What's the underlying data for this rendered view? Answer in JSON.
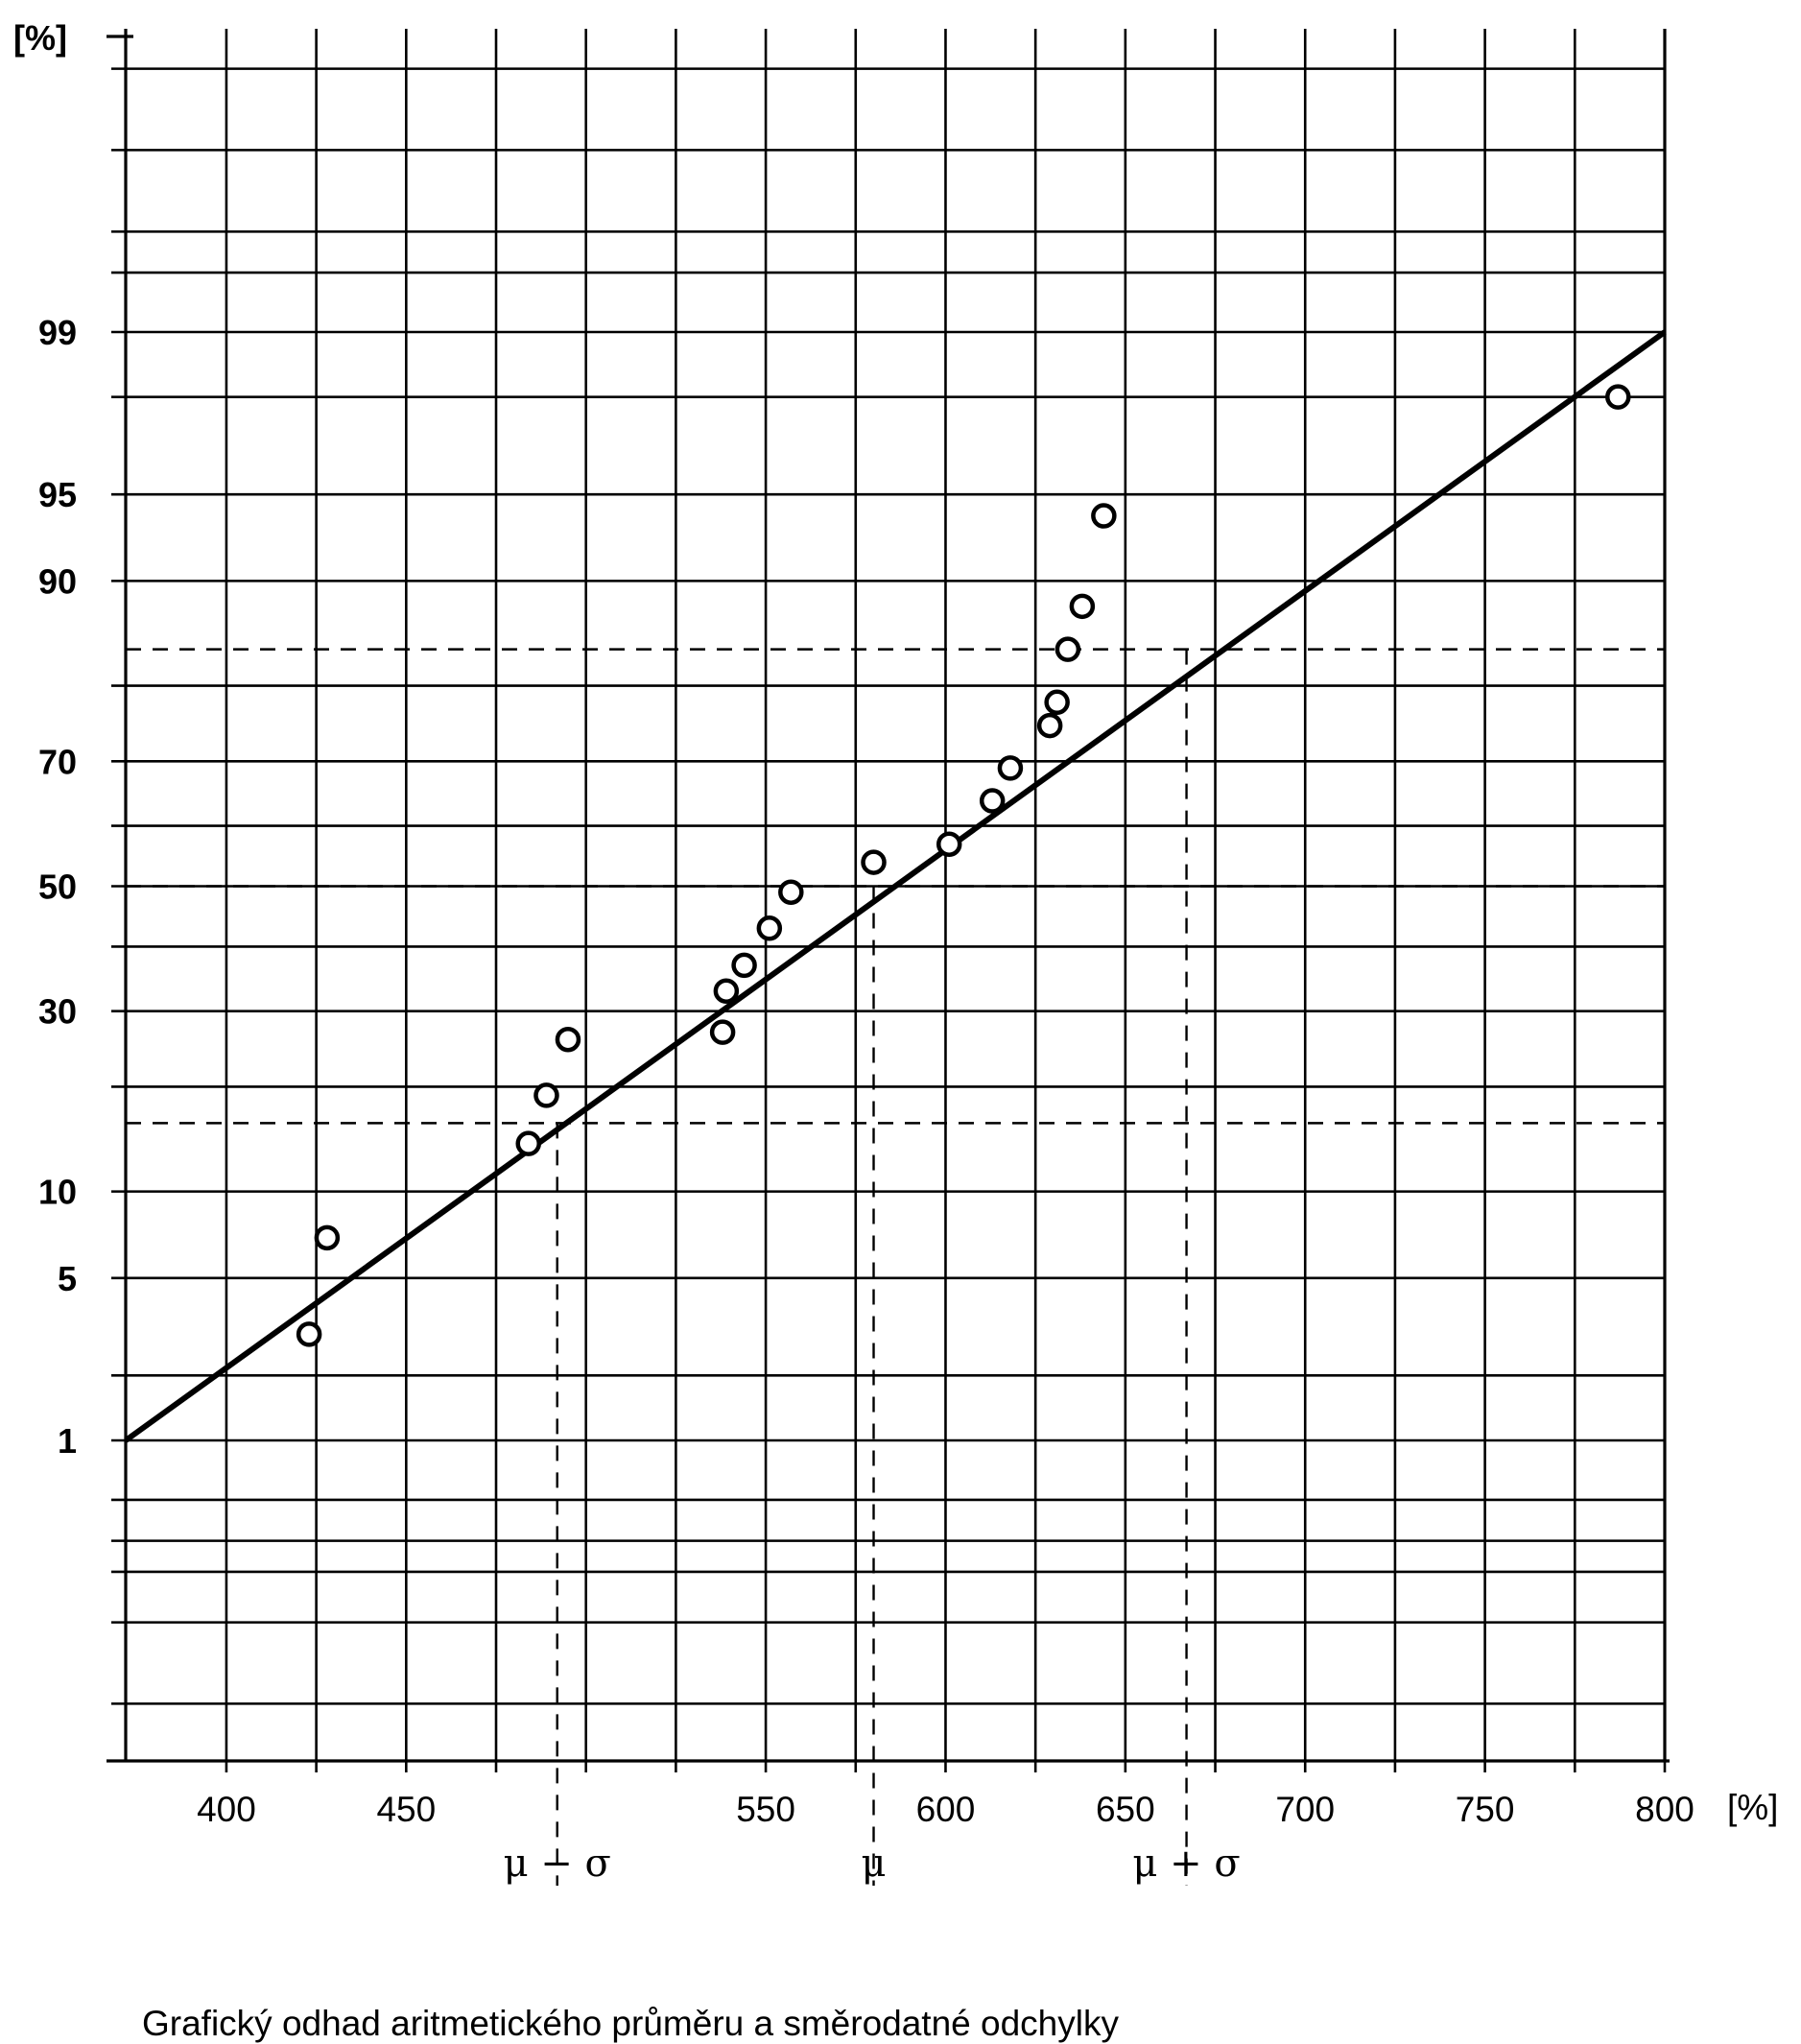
{
  "chart_data": {
    "type": "scatter",
    "title": "",
    "caption": "Grafický odhad aritmetického průměru a směrodatné odchylky",
    "x_unit": "[%]",
    "y_unit": "[%]",
    "xlim": [
      372,
      800
    ],
    "x_ticks": [
      400,
      450,
      550,
      600,
      650,
      700,
      750,
      800
    ],
    "y_scale": "normal probability",
    "y_ticks": [
      1,
      5,
      10,
      30,
      50,
      70,
      90,
      95,
      99
    ],
    "grid": true,
    "points": [
      {
        "x": 423,
        "y": 3
      },
      {
        "x": 428,
        "y": 7
      },
      {
        "x": 484,
        "y": 14
      },
      {
        "x": 489,
        "y": 19
      },
      {
        "x": 495,
        "y": 26
      },
      {
        "x": 538,
        "y": 27
      },
      {
        "x": 539,
        "y": 33
      },
      {
        "x": 544,
        "y": 37
      },
      {
        "x": 551,
        "y": 43
      },
      {
        "x": 557,
        "y": 49
      },
      {
        "x": 580,
        "y": 54
      },
      {
        "x": 601,
        "y": 57
      },
      {
        "x": 613,
        "y": 64
      },
      {
        "x": 618,
        "y": 69
      },
      {
        "x": 629,
        "y": 75
      },
      {
        "x": 631,
        "y": 78
      },
      {
        "x": 634,
        "y": 84
      },
      {
        "x": 638,
        "y": 88
      },
      {
        "x": 644,
        "y": 94
      },
      {
        "x": 787,
        "y": 98
      }
    ],
    "fit_line": {
      "x": [
        372,
        800
      ],
      "y": [
        1,
        99
      ]
    },
    "markers": [
      {
        "label": "μ − σ",
        "x": 492
      },
      {
        "label": "μ",
        "x": 580
      },
      {
        "label": "μ + σ",
        "x": 667
      }
    ],
    "reference_levels": [
      16,
      50,
      84
    ]
  }
}
